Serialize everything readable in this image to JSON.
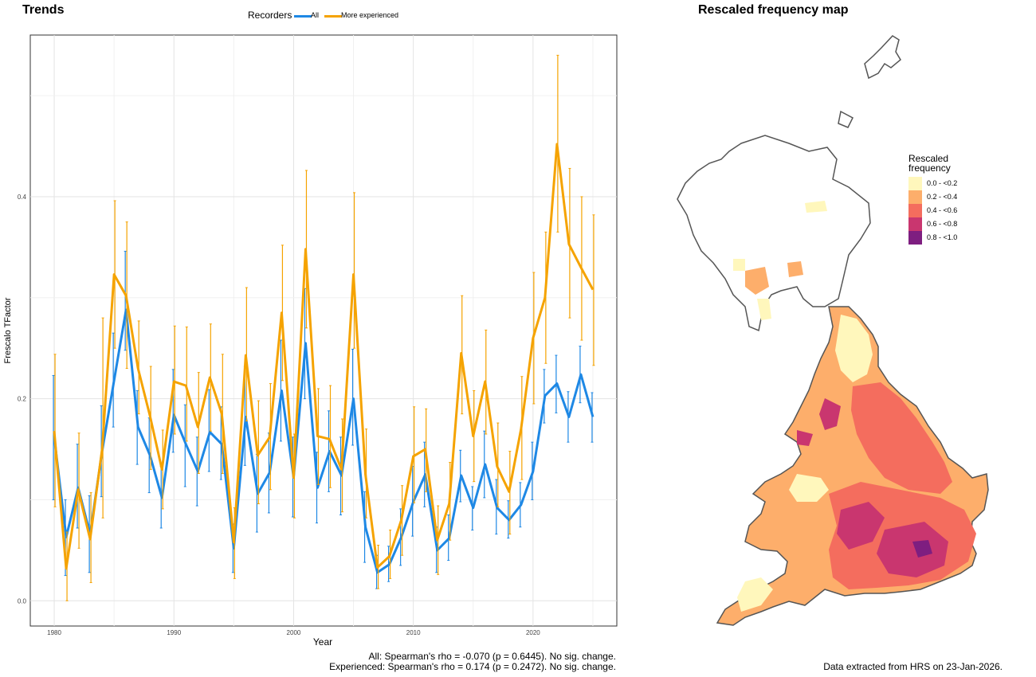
{
  "left": {
    "title": "Trends",
    "legend_title": "Recorders",
    "caption_all": "All: Spearman's rho = -0.070 (p = 0.6445). No sig. change.",
    "caption_exp": "Experienced: Spearman's rho = 0.174 (p = 0.2472). No sig. change."
  },
  "right": {
    "title": "Rescaled frequency map",
    "legend_title_1": "Rescaled",
    "legend_title_2": "frequency",
    "legend_items": [
      {
        "label": "0.0 - <0.2",
        "color": "#FFF7BC"
      },
      {
        "label": "0.2 - <0.4",
        "color": "#FDAE6B"
      },
      {
        "label": "0.4 - <0.6",
        "color": "#F46D5E"
      },
      {
        "label": "0.6 - <0.8",
        "color": "#C9366F"
      },
      {
        "label": "0.8 - <1.0",
        "color": "#7E1E80"
      }
    ],
    "caption": "Data extracted from HRS on 23-Jan-2026."
  },
  "chart_data": {
    "type": "line",
    "xlabel": "Year",
    "ylabel": "Frescalo TFactor",
    "xlim": [
      1978,
      2027
    ],
    "ylim": [
      -0.025,
      0.56
    ],
    "xticks": [
      1980,
      1990,
      2000,
      2010,
      2020
    ],
    "yticks": [
      0.0,
      0.2,
      0.4
    ],
    "grid": true,
    "legend_position": "top",
    "x": [
      1980,
      1981,
      1982,
      1983,
      1984,
      1985,
      1986,
      1987,
      1988,
      1989,
      1990,
      1991,
      1992,
      1993,
      1994,
      1995,
      1996,
      1997,
      1998,
      1999,
      2000,
      2001,
      2002,
      2003,
      2004,
      2005,
      2006,
      2007,
      2008,
      2009,
      2010,
      2011,
      2012,
      2013,
      2014,
      2015,
      2016,
      2017,
      2018,
      2019,
      2020,
      2021,
      2022,
      2023,
      2024,
      2025
    ],
    "series": [
      {
        "name": "All",
        "color": "#1E88E5",
        "values": [
          0.162,
          0.063,
          0.112,
          0.066,
          0.148,
          0.218,
          0.288,
          0.172,
          0.144,
          0.102,
          0.184,
          0.155,
          0.128,
          0.167,
          0.155,
          0.052,
          0.182,
          0.106,
          0.127,
          0.208,
          0.122,
          0.255,
          0.112,
          0.148,
          0.124,
          0.2,
          0.073,
          0.028,
          0.036,
          0.063,
          0.098,
          0.125,
          0.05,
          0.062,
          0.124,
          0.092,
          0.135,
          0.092,
          0.08,
          0.095,
          0.128,
          0.203,
          0.215,
          0.182,
          0.224,
          0.182
        ],
        "lower": [
          0.1,
          0.025,
          0.072,
          0.028,
          0.103,
          0.172,
          0.248,
          0.135,
          0.107,
          0.072,
          0.147,
          0.113,
          0.094,
          0.128,
          0.12,
          0.028,
          0.134,
          0.068,
          0.087,
          0.158,
          0.083,
          0.2,
          0.077,
          0.108,
          0.085,
          0.154,
          0.038,
          0.012,
          0.019,
          0.035,
          0.064,
          0.093,
          0.028,
          0.04,
          0.098,
          0.07,
          0.102,
          0.066,
          0.062,
          0.073,
          0.1,
          0.176,
          0.186,
          0.157,
          0.196,
          0.157
        ],
        "upper": [
          0.223,
          0.1,
          0.155,
          0.104,
          0.193,
          0.265,
          0.346,
          0.208,
          0.181,
          0.133,
          0.229,
          0.194,
          0.162,
          0.209,
          0.192,
          0.076,
          0.232,
          0.145,
          0.166,
          0.258,
          0.162,
          0.309,
          0.147,
          0.188,
          0.162,
          0.249,
          0.108,
          0.045,
          0.054,
          0.091,
          0.133,
          0.157,
          0.073,
          0.085,
          0.149,
          0.113,
          0.168,
          0.12,
          0.099,
          0.117,
          0.157,
          0.229,
          0.243,
          0.207,
          0.252,
          0.206
        ]
      },
      {
        "name": "More experienced",
        "color": "#F5A300",
        "values": [
          0.168,
          0.032,
          0.11,
          0.061,
          0.15,
          0.323,
          0.302,
          0.23,
          0.183,
          0.13,
          0.217,
          0.213,
          0.172,
          0.221,
          0.185,
          0.058,
          0.243,
          0.144,
          0.162,
          0.285,
          0.122,
          0.348,
          0.163,
          0.16,
          0.13,
          0.323,
          0.125,
          0.033,
          0.044,
          0.08,
          0.143,
          0.15,
          0.06,
          0.096,
          0.245,
          0.163,
          0.217,
          0.133,
          0.108,
          0.17,
          0.26,
          0.3,
          0.452,
          0.353,
          0.33,
          0.308
        ],
        "lower": [
          0.093,
          0.0,
          0.052,
          0.018,
          0.082,
          0.25,
          0.23,
          0.185,
          0.13,
          0.091,
          0.165,
          0.158,
          0.126,
          0.168,
          0.126,
          0.022,
          0.178,
          0.096,
          0.11,
          0.218,
          0.082,
          0.27,
          0.115,
          0.112,
          0.088,
          0.25,
          0.082,
          0.012,
          0.022,
          0.045,
          0.097,
          0.108,
          0.026,
          0.06,
          0.185,
          0.118,
          0.165,
          0.093,
          0.066,
          0.12,
          0.195,
          0.235,
          0.365,
          0.28,
          0.258,
          0.233
        ],
        "upper": [
          0.244,
          0.068,
          0.166,
          0.107,
          0.28,
          0.396,
          0.375,
          0.277,
          0.232,
          0.169,
          0.272,
          0.271,
          0.226,
          0.274,
          0.244,
          0.092,
          0.31,
          0.198,
          0.215,
          0.352,
          0.165,
          0.426,
          0.21,
          0.213,
          0.18,
          0.404,
          0.17,
          0.055,
          0.07,
          0.114,
          0.192,
          0.19,
          0.094,
          0.137,
          0.302,
          0.208,
          0.268,
          0.176,
          0.148,
          0.222,
          0.325,
          0.365,
          0.54,
          0.428,
          0.4,
          0.382
        ]
      }
    ]
  }
}
